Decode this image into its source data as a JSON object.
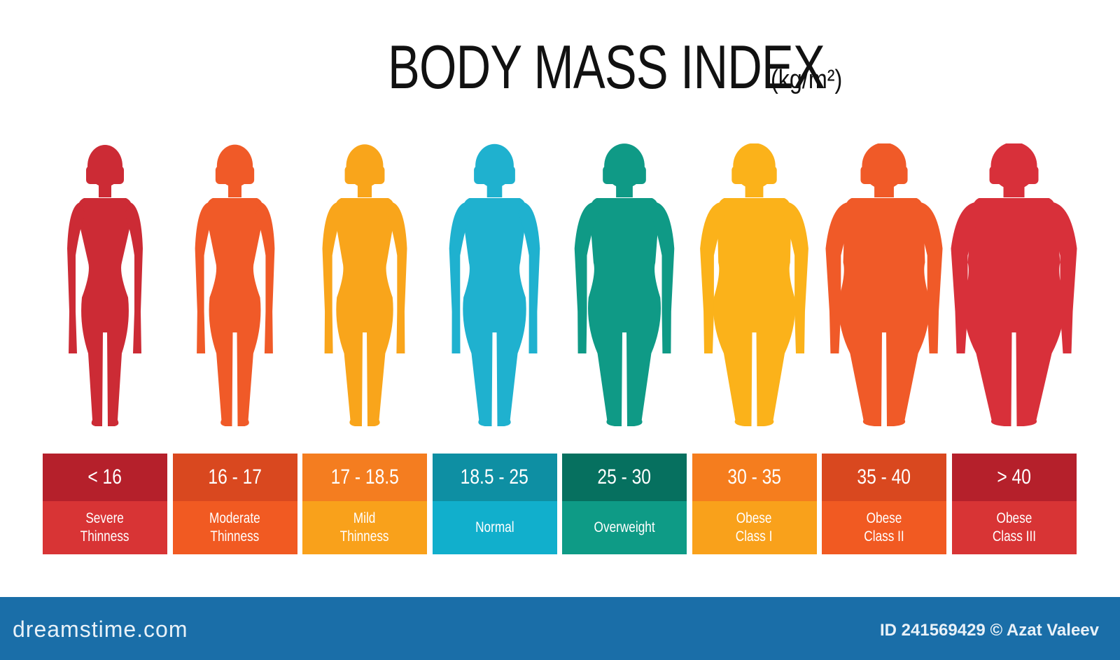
{
  "title": "BODY MASS INDEX",
  "unit": "(kg/m²)",
  "categories": [
    {
      "range": "< 16",
      "label": "Severe\nThinness",
      "body_color": "#cc2b35",
      "top_color": "#b5202b",
      "bottom_color": "#d83435",
      "build": 0.0
    },
    {
      "range": "16 - 17",
      "label": "Moderate\nThinness",
      "body_color": "#f05a28",
      "top_color": "#d9481f",
      "bottom_color": "#f15a22",
      "build": 0.08
    },
    {
      "range": "17 - 18.5",
      "label": "Mild\nThinness",
      "body_color": "#f9a51b",
      "top_color": "#f47d20",
      "bottom_color": "#f9a11b",
      "build": 0.18
    },
    {
      "range": "18.5 - 25",
      "label": "Normal",
      "body_color": "#1fb1cf",
      "top_color": "#0e8fa3",
      "bottom_color": "#11afcc",
      "build": 0.3
    },
    {
      "range": "25 - 30",
      "label": "Overweight",
      "body_color": "#0f9a86",
      "top_color": "#06705f",
      "bottom_color": "#0e9b86",
      "build": 0.48
    },
    {
      "range": "30 - 35",
      "label": "Obese\nClass I",
      "body_color": "#fbb21a",
      "top_color": "#f57d1e",
      "bottom_color": "#f9a11b",
      "build": 0.65
    },
    {
      "range": "35 - 40",
      "label": "Obese\nClass II",
      "body_color": "#f05a28",
      "top_color": "#d9481f",
      "bottom_color": "#f15a22",
      "build": 0.82
    },
    {
      "range": "> 40",
      "label": "Obese\nClass III",
      "body_color": "#d8303a",
      "top_color": "#b5202b",
      "bottom_color": "#d83435",
      "build": 1.0
    }
  ],
  "footer": {
    "brand": "dreamstime.com",
    "credit": "ID 241569429 © Azat Valeev"
  }
}
